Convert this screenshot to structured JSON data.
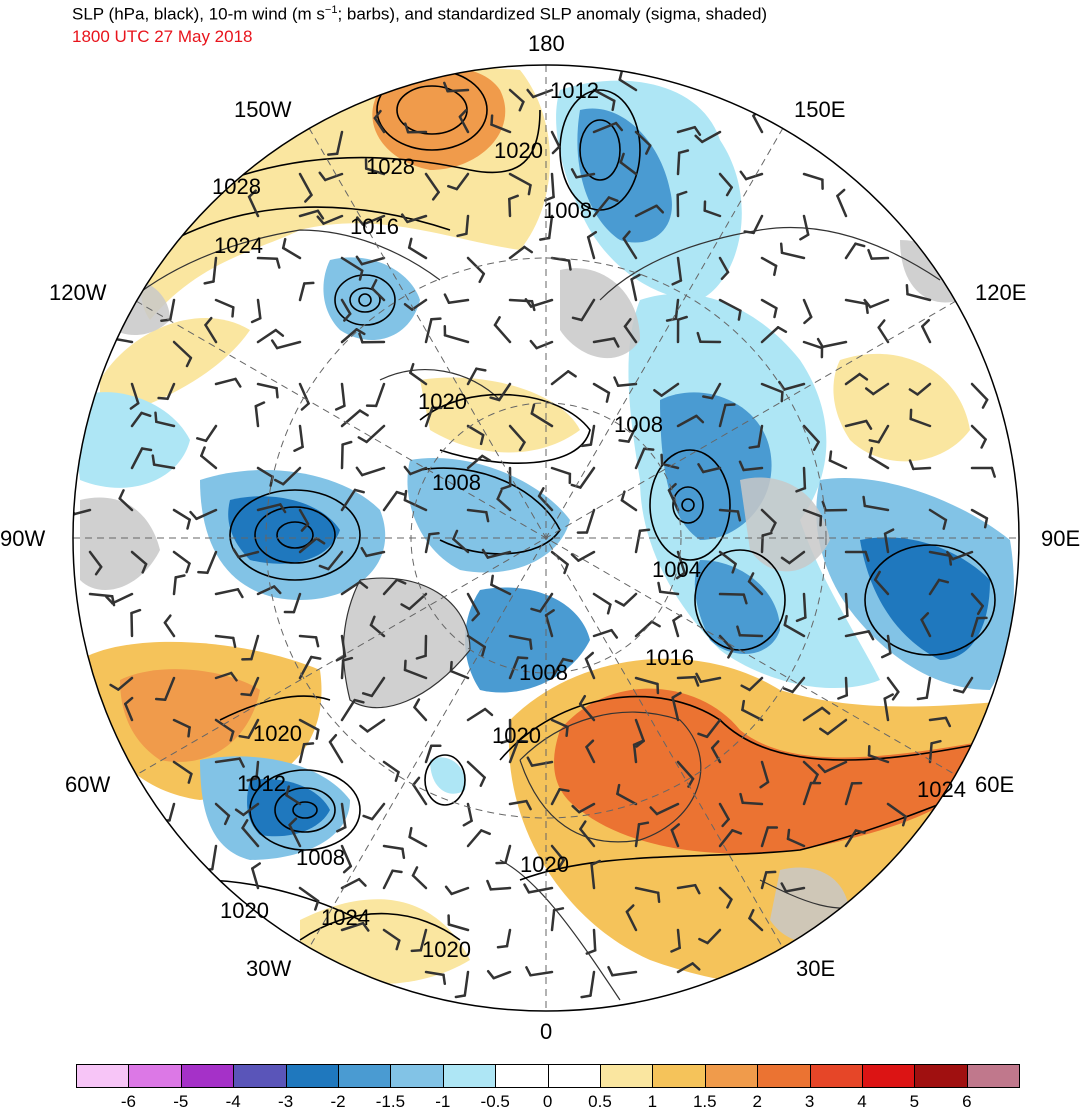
{
  "title": {
    "line1_pre": "SLP (hPa, black), 10-m wind (m s",
    "line1_sup": "−1",
    "line1_post": "; barbs), and standardized SLP anomaly (sigma, shaded)",
    "line2": "1800 UTC 27 May 2018"
  },
  "map": {
    "projection": "north-polar-stereographic",
    "longitude_labels": {
      "deg180": "180",
      "deg150w": "150W",
      "deg150e": "150E",
      "deg120w": "120W",
      "deg120e": "120E",
      "deg90w": "90W",
      "deg90e": "90E",
      "deg60w": "60W",
      "deg60e": "60E",
      "deg30w": "30W",
      "deg30e": "30E",
      "deg0": "0"
    },
    "isobar_labels": [
      "1012",
      "1028",
      "1020",
      "1028",
      "1008",
      "1024",
      "1016",
      "1020",
      "1008",
      "1008",
      "1004",
      "1008",
      "1016",
      "1020",
      "1020",
      "1012",
      "1008",
      "1020",
      "1024",
      "1020",
      "1020",
      "1024"
    ],
    "colors": {
      "land_no_anomaly": "#c8c8c8",
      "coastline": "#333333",
      "isobar": "#000000",
      "barb": "#333333"
    }
  },
  "colorbar": {
    "ticks": [
      "-6",
      "-5",
      "-4",
      "-3",
      "-2",
      "-1.5",
      "-1",
      "-0.5",
      "0",
      "0.5",
      "1",
      "1.5",
      "2",
      "3",
      "4",
      "5",
      "6"
    ],
    "colors": [
      "#f7c5f7",
      "#dc78e6",
      "#a531c8",
      "#5a55b9",
      "#1f78be",
      "#4a9bd2",
      "#82c3e6",
      "#aee6f5",
      "#ffffff",
      "#ffffff",
      "#fae6a0",
      "#f5c35a",
      "#f09b4b",
      "#eb7332",
      "#e64628",
      "#dc1414",
      "#a01010",
      "#c0788c"
    ]
  }
}
